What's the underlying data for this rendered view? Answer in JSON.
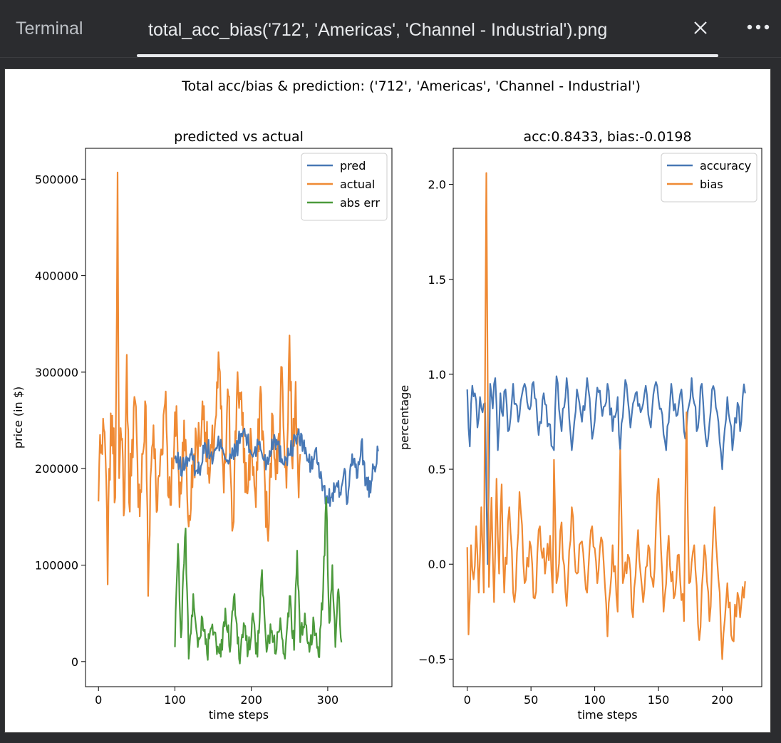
{
  "tabs": {
    "terminal_label": "Terminal",
    "active_label": "total_acc_bias('712', 'Americas', 'Channel - Industrial').png"
  },
  "icons": {
    "close": "close-icon",
    "more": "more-icon"
  },
  "figure": {
    "suptitle": "Total acc/bias & prediction: ('712', 'Americas', 'Channel - Industrial')"
  },
  "chart_data": [
    {
      "type": "line",
      "title": "predicted vs actual",
      "xlabel": "time steps",
      "ylabel": "price (in $)",
      "xlim": [
        -17,
        384
      ],
      "ylim": [
        -26000,
        532000
      ],
      "xticks": [
        0,
        100,
        200,
        300
      ],
      "yticks": [
        0,
        100000,
        200000,
        300000,
        400000,
        500000
      ],
      "ytick_labels": [
        "0",
        "100000",
        "200000",
        "300000",
        "400000",
        "500000"
      ],
      "legend": "top-right",
      "series": [
        {
          "name": "pred",
          "color": "#4878b5"
        },
        {
          "name": "actual",
          "color": "#ef8a34"
        },
        {
          "name": "abs err",
          "color": "#4c9a3c"
        }
      ],
      "actual": {
        "x_range": [
          0,
          264
        ],
        "anchors": [
          [
            0,
            166000
          ],
          [
            2,
            235000
          ],
          [
            5,
            215000
          ],
          [
            8,
            238000
          ],
          [
            10,
            190000
          ],
          [
            12,
            80000
          ],
          [
            14,
            200000
          ],
          [
            18,
            255000
          ],
          [
            22,
            170000
          ],
          [
            25,
            507000
          ],
          [
            27,
            190000
          ],
          [
            30,
            230000
          ],
          [
            34,
            160000
          ],
          [
            37,
            318000
          ],
          [
            40,
            165000
          ],
          [
            44,
            230000
          ],
          [
            48,
            270000
          ],
          [
            52,
            160000
          ],
          [
            58,
            215000
          ],
          [
            62,
            265000
          ],
          [
            65,
            68000
          ],
          [
            68,
            190000
          ],
          [
            72,
            245000
          ],
          [
            76,
            155000
          ],
          [
            82,
            220000
          ],
          [
            88,
            280000
          ],
          [
            92,
            170000
          ],
          [
            98,
            200000
          ],
          [
            102,
            265000
          ],
          [
            106,
            160000
          ],
          [
            112,
            250000
          ],
          [
            118,
            140000
          ],
          [
            125,
            215000
          ],
          [
            132,
            230000
          ],
          [
            138,
            265000
          ],
          [
            145,
            185000
          ],
          [
            152,
            240000
          ],
          [
            158,
            305000
          ],
          [
            164,
            175000
          ],
          [
            170,
            275000
          ],
          [
            176,
            140000
          ],
          [
            182,
            300000
          ],
          [
            188,
            245000
          ],
          [
            194,
            175000
          ],
          [
            200,
            230000
          ],
          [
            206,
            160000
          ],
          [
            212,
            285000
          ],
          [
            218,
            180000
          ],
          [
            222,
            125000
          ],
          [
            228,
            255000
          ],
          [
            234,
            195000
          ],
          [
            240,
            305000
          ],
          [
            246,
            180000
          ],
          [
            250,
            338000
          ],
          [
            254,
            200000
          ],
          [
            258,
            290000
          ],
          [
            262,
            170000
          ],
          [
            264,
            215000
          ]
        ]
      },
      "pred": {
        "x_range": [
          100,
          366
        ],
        "anchors": [
          [
            100,
            210000
          ],
          [
            110,
            200000
          ],
          [
            120,
            215000
          ],
          [
            130,
            195000
          ],
          [
            140,
            225000
          ],
          [
            150,
            210000
          ],
          [
            160,
            230000
          ],
          [
            170,
            205000
          ],
          [
            180,
            220000
          ],
          [
            190,
            240000
          ],
          [
            200,
            215000
          ],
          [
            210,
            225000
          ],
          [
            220,
            205000
          ],
          [
            230,
            235000
          ],
          [
            240,
            210000
          ],
          [
            250,
            215000
          ],
          [
            260,
            235000
          ],
          [
            268,
            225000
          ],
          [
            272,
            215000
          ],
          [
            278,
            200000
          ],
          [
            284,
            220000
          ],
          [
            290,
            190000
          ],
          [
            294,
            182000
          ],
          [
            298,
            168000
          ],
          [
            304,
            170000
          ],
          [
            310,
            180000
          ],
          [
            316,
            175000
          ],
          [
            322,
            200000
          ],
          [
            326,
            165000
          ],
          [
            332,
            215000
          ],
          [
            338,
            190000
          ],
          [
            344,
            228000
          ],
          [
            350,
            185000
          ],
          [
            356,
            175000
          ],
          [
            360,
            200000
          ],
          [
            366,
            218000
          ]
        ]
      },
      "abs_err": {
        "x_range": [
          100,
          318
        ],
        "anchors": [
          [
            100,
            15000
          ],
          [
            104,
            122000
          ],
          [
            108,
            25000
          ],
          [
            114,
            138000
          ],
          [
            118,
            3000
          ],
          [
            124,
            70000
          ],
          [
            130,
            15000
          ],
          [
            136,
            45000
          ],
          [
            142,
            8000
          ],
          [
            148,
            35000
          ],
          [
            154,
            20000
          ],
          [
            160,
            5000
          ],
          [
            166,
            55000
          ],
          [
            172,
            10000
          ],
          [
            178,
            70000
          ],
          [
            184,
            3000
          ],
          [
            190,
            40000
          ],
          [
            196,
            12000
          ],
          [
            202,
            50000
          ],
          [
            208,
            5000
          ],
          [
            214,
            95000
          ],
          [
            220,
            10000
          ],
          [
            226,
            30000
          ],
          [
            232,
            8000
          ],
          [
            238,
            45000
          ],
          [
            244,
            3000
          ],
          [
            250,
            68000
          ],
          [
            256,
            12000
          ],
          [
            260,
            115000
          ],
          [
            264,
            20000
          ],
          [
            270,
            50000
          ],
          [
            276,
            10000
          ],
          [
            282,
            40000
          ],
          [
            288,
            5000
          ],
          [
            294,
            75000
          ],
          [
            298,
            170000
          ],
          [
            302,
            40000
          ],
          [
            306,
            100000
          ],
          [
            310,
            15000
          ],
          [
            314,
            75000
          ],
          [
            318,
            20000
          ]
        ]
      }
    },
    {
      "type": "line",
      "title": "acc:0.8433, bias:-0.0198",
      "xlabel": "time steps",
      "ylabel": "percentage",
      "xlim": [
        -11,
        231
      ],
      "ylim": [
        -0.645,
        2.19
      ],
      "xticks": [
        0,
        50,
        100,
        150,
        200
      ],
      "yticks": [
        -0.5,
        0.0,
        0.5,
        1.0,
        1.5,
        2.0
      ],
      "ytick_labels": [
        "−0.5",
        "0.0",
        "0.5",
        "1.0",
        "1.5",
        "2.0"
      ],
      "legend": "top-right",
      "series": [
        {
          "name": "accuracy",
          "color": "#4878b5"
        },
        {
          "name": "bias",
          "color": "#ef8a34"
        }
      ],
      "accuracy": {
        "x_range": [
          0,
          218
        ],
        "anchors": [
          [
            0,
            0.92
          ],
          [
            2,
            0.62
          ],
          [
            4,
            0.94
          ],
          [
            6,
            0.9
          ],
          [
            8,
            0.72
          ],
          [
            10,
            0.88
          ],
          [
            12,
            0.8
          ],
          [
            14,
            0.85
          ],
          [
            16,
            0.0
          ],
          [
            18,
            0.95
          ],
          [
            20,
            0.82
          ],
          [
            22,
            0.98
          ],
          [
            24,
            0.6
          ],
          [
            26,
            0.9
          ],
          [
            28,
            0.78
          ],
          [
            30,
            0.92
          ],
          [
            32,
            0.7
          ],
          [
            36,
            0.95
          ],
          [
            40,
            0.75
          ],
          [
            44,
            0.93
          ],
          [
            48,
            0.82
          ],
          [
            52,
            0.96
          ],
          [
            56,
            0.68
          ],
          [
            60,
            0.9
          ],
          [
            64,
            0.74
          ],
          [
            68,
            0.6
          ],
          [
            70,
            0.99
          ],
          [
            74,
            0.7
          ],
          [
            78,
            0.98
          ],
          [
            82,
            0.6
          ],
          [
            86,
            0.92
          ],
          [
            90,
            0.75
          ],
          [
            94,
            0.98
          ],
          [
            98,
            0.66
          ],
          [
            102,
            0.93
          ],
          [
            106,
            0.78
          ],
          [
            110,
            0.95
          ],
          [
            114,
            0.7
          ],
          [
            118,
            0.88
          ],
          [
            120,
            0.6
          ],
          [
            124,
            0.97
          ],
          [
            128,
            0.72
          ],
          [
            132,
            0.9
          ],
          [
            136,
            0.8
          ],
          [
            140,
            0.94
          ],
          [
            144,
            0.72
          ],
          [
            148,
            0.96
          ],
          [
            152,
            0.82
          ],
          [
            156,
            0.6
          ],
          [
            160,
            0.95
          ],
          [
            164,
            0.78
          ],
          [
            168,
            0.92
          ],
          [
            170,
            0.7
          ],
          [
            172,
            0.72
          ],
          [
            176,
            0.98
          ],
          [
            180,
            0.7
          ],
          [
            184,
            0.95
          ],
          [
            188,
            0.62
          ],
          [
            192,
            0.92
          ],
          [
            196,
            0.8
          ],
          [
            200,
            0.5
          ],
          [
            204,
            0.88
          ],
          [
            208,
            0.6
          ],
          [
            212,
            0.85
          ],
          [
            214,
            0.7
          ],
          [
            216,
            0.88
          ],
          [
            218,
            0.9
          ]
        ]
      },
      "bias": {
        "x_range": [
          0,
          218
        ],
        "anchors": [
          [
            0,
            0.09
          ],
          [
            1,
            -0.37
          ],
          [
            3,
            0.1
          ],
          [
            5,
            -0.08
          ],
          [
            7,
            0.2
          ],
          [
            9,
            -0.15
          ],
          [
            11,
            0.3
          ],
          [
            13,
            -0.15
          ],
          [
            15,
            2.06
          ],
          [
            17,
            -0.12
          ],
          [
            19,
            0.35
          ],
          [
            21,
            -0.2
          ],
          [
            23,
            0.45
          ],
          [
            25,
            -0.05
          ],
          [
            27,
            0.42
          ],
          [
            29,
            -0.15
          ],
          [
            33,
            0.3
          ],
          [
            37,
            -0.2
          ],
          [
            41,
            0.38
          ],
          [
            45,
            -0.1
          ],
          [
            49,
            0.12
          ],
          [
            53,
            -0.18
          ],
          [
            57,
            0.2
          ],
          [
            61,
            -0.05
          ],
          [
            65,
            0.15
          ],
          [
            67,
            -0.15
          ],
          [
            68,
            0.55
          ],
          [
            70,
            -0.1
          ],
          [
            74,
            0.22
          ],
          [
            78,
            -0.22
          ],
          [
            82,
            0.3
          ],
          [
            86,
            -0.05
          ],
          [
            90,
            0.12
          ],
          [
            94,
            -0.15
          ],
          [
            98,
            0.2
          ],
          [
            102,
            -0.1
          ],
          [
            106,
            0.12
          ],
          [
            110,
            -0.38
          ],
          [
            114,
            0.1
          ],
          [
            118,
            -0.25
          ],
          [
            120,
            0.6
          ],
          [
            122,
            -0.1
          ],
          [
            126,
            0.05
          ],
          [
            130,
            -0.28
          ],
          [
            134,
            0.18
          ],
          [
            138,
            -0.2
          ],
          [
            142,
            0.1
          ],
          [
            146,
            -0.12
          ],
          [
            150,
            0.45
          ],
          [
            154,
            -0.25
          ],
          [
            158,
            0.15
          ],
          [
            162,
            -0.18
          ],
          [
            166,
            0.05
          ],
          [
            170,
            -0.3
          ],
          [
            172,
            0.8
          ],
          [
            174,
            -0.1
          ],
          [
            178,
            0.1
          ],
          [
            182,
            -0.4
          ],
          [
            186,
            0.1
          ],
          [
            190,
            -0.3
          ],
          [
            194,
            0.3
          ],
          [
            198,
            -0.15
          ],
          [
            200,
            -0.5
          ],
          [
            204,
            -0.1
          ],
          [
            208,
            -0.4
          ],
          [
            212,
            -0.15
          ],
          [
            214,
            -0.28
          ],
          [
            216,
            -0.12
          ],
          [
            218,
            -0.09
          ]
        ]
      }
    }
  ]
}
